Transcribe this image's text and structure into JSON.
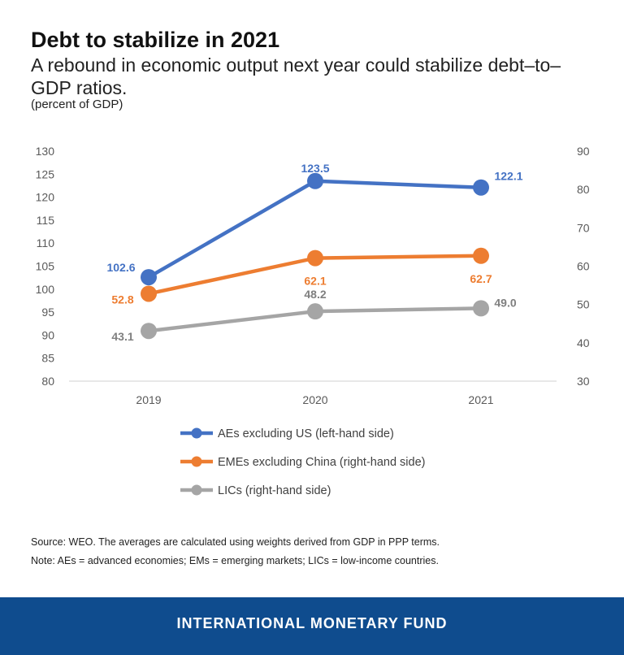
{
  "header": {
    "title": "Debt to stabilize in 2021",
    "subtitle": "A rebound in economic output next year could stabilize debt–to–GDP ratios.",
    "unit": "(percent of GDP)"
  },
  "chart_data": {
    "type": "line",
    "categories": [
      "2019",
      "2020",
      "2021"
    ],
    "left_axis": {
      "ylim": [
        80,
        130
      ],
      "ticks": [
        "130",
        "125",
        "120",
        "115",
        "110",
        "105",
        "100",
        "95",
        "90",
        "85",
        "80"
      ]
    },
    "right_axis": {
      "ylim": [
        30,
        90
      ],
      "ticks": [
        "90",
        "80",
        "70",
        "60",
        "50",
        "40",
        "30"
      ]
    },
    "series": [
      {
        "name": "AEs excluding US (left-hand side)",
        "axis": "left",
        "color": "#4472c4",
        "values": [
          102.6,
          123.5,
          122.1
        ],
        "labels": [
          "102.6",
          "123.5",
          "122.1"
        ]
      },
      {
        "name": "EMEs excluding China (right-hand side)",
        "axis": "right",
        "color": "#ed7d31",
        "values": [
          52.8,
          62.1,
          62.7
        ],
        "labels": [
          "52.8",
          "62.1",
          "62.7"
        ]
      },
      {
        "name": "LICs (right-hand side)",
        "axis": "right",
        "color": "#a5a5a5",
        "values": [
          43.1,
          48.2,
          49.0
        ],
        "labels": [
          "43.1",
          "48.2",
          "49.0"
        ]
      }
    ],
    "legend_position": "bottom",
    "grid": false
  },
  "notes": {
    "source": "Source: WEO. The averages are calculated using weights derived from GDP in PPP terms.",
    "note": "Note: AEs = advanced economies; EMs = emerging markets; LICs = low-income countries."
  },
  "footer": {
    "org": "INTERNATIONAL MONETARY FUND"
  }
}
